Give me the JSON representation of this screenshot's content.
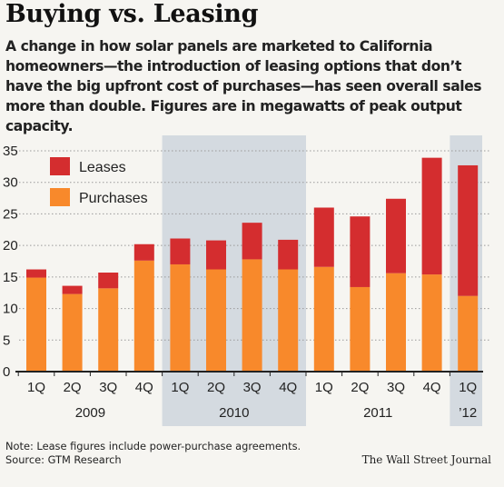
{
  "title": "Buying vs. Leasing",
  "subtitle": "A change in how solar panels are marketed to California homeowners—the introduction of leasing options that don’t have the big upfront cost of purchases—has seen overall sales more than double. Figures are in megawatts of peak output capacity.",
  "footnote": "Note: Lease figures include power-purchase agreements.",
  "source": "Source: GTM Research",
  "credit": "The Wall Street Journal",
  "colors": {
    "leases": "#d42d2f",
    "purchases": "#f8892b",
    "highlight_band": "#d4dae0",
    "gridline": "#9a9a9a",
    "axis": "#222222"
  },
  "chart_data": {
    "type": "bar",
    "stacked": true,
    "title": "Buying vs. Leasing",
    "ylabel": "",
    "xlabel": "",
    "ylim": [
      0,
      35
    ],
    "yticks": [
      0,
      5,
      10,
      15,
      20,
      25,
      30,
      35
    ],
    "grid": "dotted horizontal",
    "legend_position": "top-left",
    "categories": [
      "1Q",
      "2Q",
      "3Q",
      "4Q",
      "1Q",
      "2Q",
      "3Q",
      "4Q",
      "1Q",
      "2Q",
      "3Q",
      "4Q",
      "1Q"
    ],
    "year_groups": [
      {
        "label": "2009",
        "start": 0,
        "end": 3,
        "shaded": false
      },
      {
        "label": "2010",
        "start": 4,
        "end": 7,
        "shaded": true
      },
      {
        "label": "2011",
        "start": 8,
        "end": 11,
        "shaded": false
      },
      {
        "label": "’12",
        "start": 12,
        "end": 12,
        "shaded": true
      }
    ],
    "series": [
      {
        "name": "Purchases",
        "color": "#f8892b",
        "values": [
          14.9,
          12.3,
          13.2,
          17.6,
          17.0,
          16.2,
          17.8,
          16.2,
          16.6,
          13.4,
          15.6,
          15.4,
          12.0
        ]
      },
      {
        "name": "Leases",
        "color": "#d42d2f",
        "values": [
          1.3,
          1.3,
          2.5,
          2.6,
          4.1,
          4.6,
          5.8,
          4.7,
          9.4,
          11.2,
          11.8,
          18.5,
          20.7
        ]
      }
    ]
  }
}
